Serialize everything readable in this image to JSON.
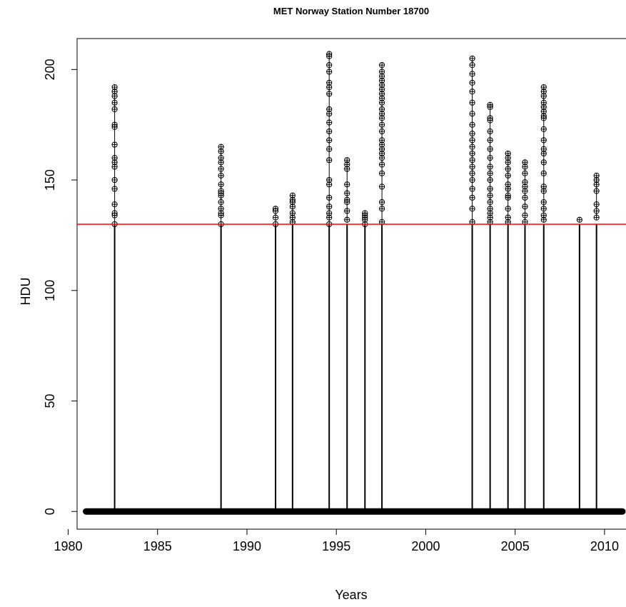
{
  "chart_data": {
    "type": "scatter",
    "title": "MET Norway Station Number 18700",
    "xlabel": "Years",
    "ylabel": "HDU",
    "xlim": [
      1980.5,
      2011.2
    ],
    "ylim": [
      -8,
      214
    ],
    "x_ticks": [
      "1980",
      "1985",
      "1990",
      "1995",
      "2000",
      "2005",
      "2010"
    ],
    "y_ticks": [
      "0",
      "50",
      "100",
      "150",
      "200"
    ],
    "grid": false,
    "legend": "none",
    "baseline": {
      "from": 1981.0,
      "to": 2011.0,
      "value": 0
    },
    "threshold": {
      "value": 130,
      "color": "#ff0000"
    },
    "events": [
      {
        "year": 1982.6,
        "values": [
          192,
          190,
          188,
          185,
          182,
          175,
          174,
          166,
          160,
          158,
          156,
          150,
          146,
          139,
          135,
          134,
          130
        ]
      },
      {
        "year": 1988.55,
        "values": [
          165,
          163,
          160,
          158,
          155,
          152,
          148,
          145,
          144,
          143,
          140,
          137,
          135,
          134,
          130
        ]
      },
      {
        "year": 1991.6,
        "values": [
          137,
          136,
          133,
          130
        ]
      },
      {
        "year": 1992.55,
        "values": [
          143,
          141,
          140,
          138,
          135,
          133,
          131
        ]
      },
      {
        "year": 1994.6,
        "values": [
          207,
          206,
          202,
          199,
          194,
          192,
          189,
          182,
          180,
          176,
          172,
          168,
          164,
          159,
          150,
          148,
          142,
          138,
          135,
          133,
          130
        ]
      },
      {
        "year": 1995.6,
        "values": [
          159,
          157,
          155,
          148,
          144,
          141,
          140,
          136,
          132
        ]
      },
      {
        "year": 1996.6,
        "values": [
          135,
          134,
          133,
          132,
          130
        ]
      },
      {
        "year": 1997.55,
        "values": [
          202,
          199,
          197,
          195,
          193,
          191,
          189,
          187,
          185,
          182,
          180,
          178,
          175,
          172,
          168,
          166,
          164,
          162,
          160,
          157,
          153,
          147,
          140,
          137,
          131
        ]
      },
      {
        "year": 2002.6,
        "values": [
          205,
          202,
          198,
          194,
          190,
          185,
          180,
          175,
          171,
          168,
          165,
          162,
          159,
          156,
          153,
          150,
          146,
          142,
          137,
          131
        ]
      },
      {
        "year": 2003.6,
        "values": [
          184,
          183,
          178,
          177,
          172,
          168,
          164,
          160,
          156,
          153,
          150,
          146,
          143,
          140,
          137,
          135,
          133,
          131
        ]
      },
      {
        "year": 2004.6,
        "values": [
          162,
          160,
          158,
          155,
          152,
          148,
          146,
          143,
          142,
          137,
          133,
          131
        ]
      },
      {
        "year": 2005.55,
        "values": [
          158,
          156,
          153,
          149,
          147,
          145,
          142,
          138,
          134,
          131
        ]
      },
      {
        "year": 2006.6,
        "values": [
          192,
          190,
          188,
          185,
          183,
          181,
          179,
          178,
          173,
          168,
          164,
          162,
          158,
          153,
          147,
          145,
          140,
          137,
          134,
          132
        ]
      },
      {
        "year": 2008.6,
        "values": [
          132
        ]
      },
      {
        "year": 2009.55,
        "values": [
          152,
          150,
          148,
          145,
          139,
          136,
          133
        ]
      }
    ]
  }
}
